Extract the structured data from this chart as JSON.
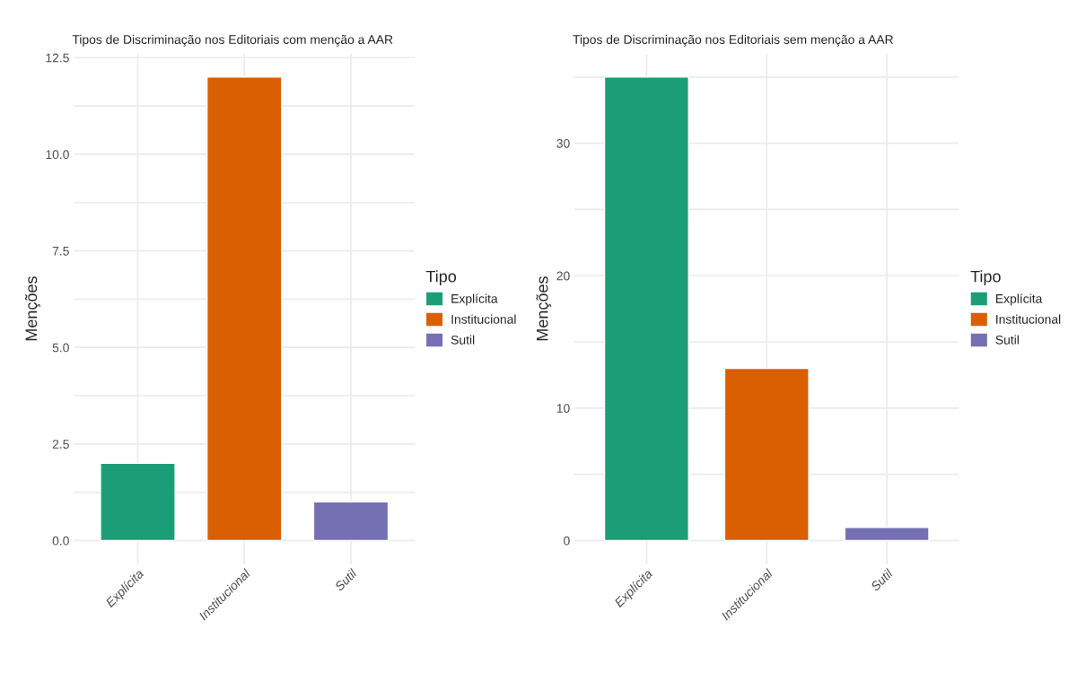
{
  "chart_data": [
    {
      "type": "bar",
      "title": "Tipos de Discriminação nos Editoriais com menção a AAR",
      "ylabel": "Menções",
      "categories": [
        "Explícita",
        "Institucional",
        "Sutil"
      ],
      "series": [
        {
          "name": "Explícita",
          "color": "#1b9e77",
          "values": [
            2,
            null,
            null
          ]
        },
        {
          "name": "Institucional",
          "color": "#d95f02",
          "values": [
            null,
            12,
            null
          ]
        },
        {
          "name": "Sutil",
          "color": "#7570b3",
          "values": [
            null,
            null,
            1
          ]
        }
      ],
      "ylim": [
        -0.6,
        12.6
      ],
      "yticks": [
        {
          "value": 0,
          "label": "0.0"
        },
        {
          "value": 1.25,
          "label": null
        },
        {
          "value": 2.5,
          "label": "2.5"
        },
        {
          "value": 3.75,
          "label": null
        },
        {
          "value": 5,
          "label": "5.0"
        },
        {
          "value": 6.25,
          "label": null
        },
        {
          "value": 7.5,
          "label": "7.5"
        },
        {
          "value": 8.75,
          "label": null
        },
        {
          "value": 10,
          "label": "10.0"
        },
        {
          "value": 11.25,
          "label": null
        },
        {
          "value": 12.5,
          "label": "12.5"
        }
      ],
      "grid": true,
      "legend": "right",
      "legend_title": "Tipo"
    },
    {
      "type": "bar",
      "title": "Tipos de Discriminação nos Editoriais sem menção a AAR",
      "ylabel": "Menções",
      "categories": [
        "Explícita",
        "Institucional",
        "Sutil"
      ],
      "series": [
        {
          "name": "Explícita",
          "color": "#1b9e77",
          "values": [
            35,
            null,
            null
          ]
        },
        {
          "name": "Institucional",
          "color": "#d95f02",
          "values": [
            null,
            13,
            null
          ]
        },
        {
          "name": "Sutil",
          "color": "#7570b3",
          "values": [
            null,
            null,
            1
          ]
        }
      ],
      "ylim": [
        -1.75,
        36.75
      ],
      "yticks": [
        0,
        {
          "value": 5,
          "label": null
        },
        10,
        {
          "value": 15,
          "label": null
        },
        20,
        {
          "value": 25,
          "label": null
        },
        30,
        {
          "value": 35,
          "label": null
        }
      ],
      "grid": true,
      "legend": "right",
      "legend_title": "Tipo"
    }
  ]
}
